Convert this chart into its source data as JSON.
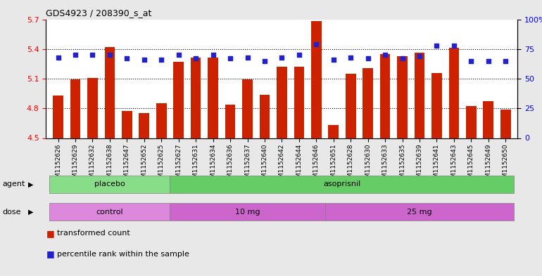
{
  "title": "GDS4923 / 208390_s_at",
  "samples": [
    "GSM1152626",
    "GSM1152629",
    "GSM1152632",
    "GSM1152638",
    "GSM1152647",
    "GSM1152652",
    "GSM1152625",
    "GSM1152627",
    "GSM1152631",
    "GSM1152634",
    "GSM1152636",
    "GSM1152637",
    "GSM1152640",
    "GSM1152642",
    "GSM1152644",
    "GSM1152646",
    "GSM1152651",
    "GSM1152628",
    "GSM1152630",
    "GSM1152633",
    "GSM1152635",
    "GSM1152639",
    "GSM1152641",
    "GSM1152643",
    "GSM1152645",
    "GSM1152649",
    "GSM1152650"
  ],
  "bar_values": [
    4.93,
    5.09,
    5.11,
    5.42,
    4.77,
    4.75,
    4.85,
    5.27,
    5.31,
    5.31,
    4.84,
    5.09,
    4.94,
    5.22,
    5.22,
    5.68,
    4.63,
    5.15,
    5.21,
    5.35,
    5.33,
    5.36,
    5.16,
    5.41,
    4.82,
    4.87,
    4.79
  ],
  "percentile_values": [
    68,
    70,
    70,
    70,
    67,
    66,
    66,
    70,
    67,
    70,
    67,
    68,
    65,
    68,
    70,
    79,
    66,
    68,
    67,
    70,
    67,
    69,
    78,
    78,
    65,
    65,
    65
  ],
  "bar_color": "#cc2200",
  "dot_color": "#2222cc",
  "ylim_left": [
    4.5,
    5.7
  ],
  "ylim_right": [
    0,
    100
  ],
  "yticks_left": [
    4.5,
    4.8,
    5.1,
    5.4,
    5.7
  ],
  "yticks_right": [
    0,
    25,
    50,
    75,
    100
  ],
  "grid_values": [
    4.8,
    5.1,
    5.4
  ],
  "agent_groups": [
    {
      "label": "placebo",
      "start": 0,
      "end": 7,
      "color": "#88dd88"
    },
    {
      "label": "asoprisnil",
      "start": 7,
      "end": 27,
      "color": "#66cc66"
    }
  ],
  "dose_groups": [
    {
      "label": "control",
      "start": 0,
      "end": 7,
      "color": "#dd88dd"
    },
    {
      "label": "10 mg",
      "start": 7,
      "end": 16,
      "color": "#cc66cc"
    },
    {
      "label": "25 mg",
      "start": 16,
      "end": 27,
      "color": "#cc66cc"
    }
  ],
  "legend_items": [
    {
      "label": "transformed count",
      "color": "#cc2200"
    },
    {
      "label": "percentile rank within the sample",
      "color": "#2222cc"
    }
  ],
  "background_color": "#e8e8e8",
  "plot_bg_color": "#ffffff"
}
